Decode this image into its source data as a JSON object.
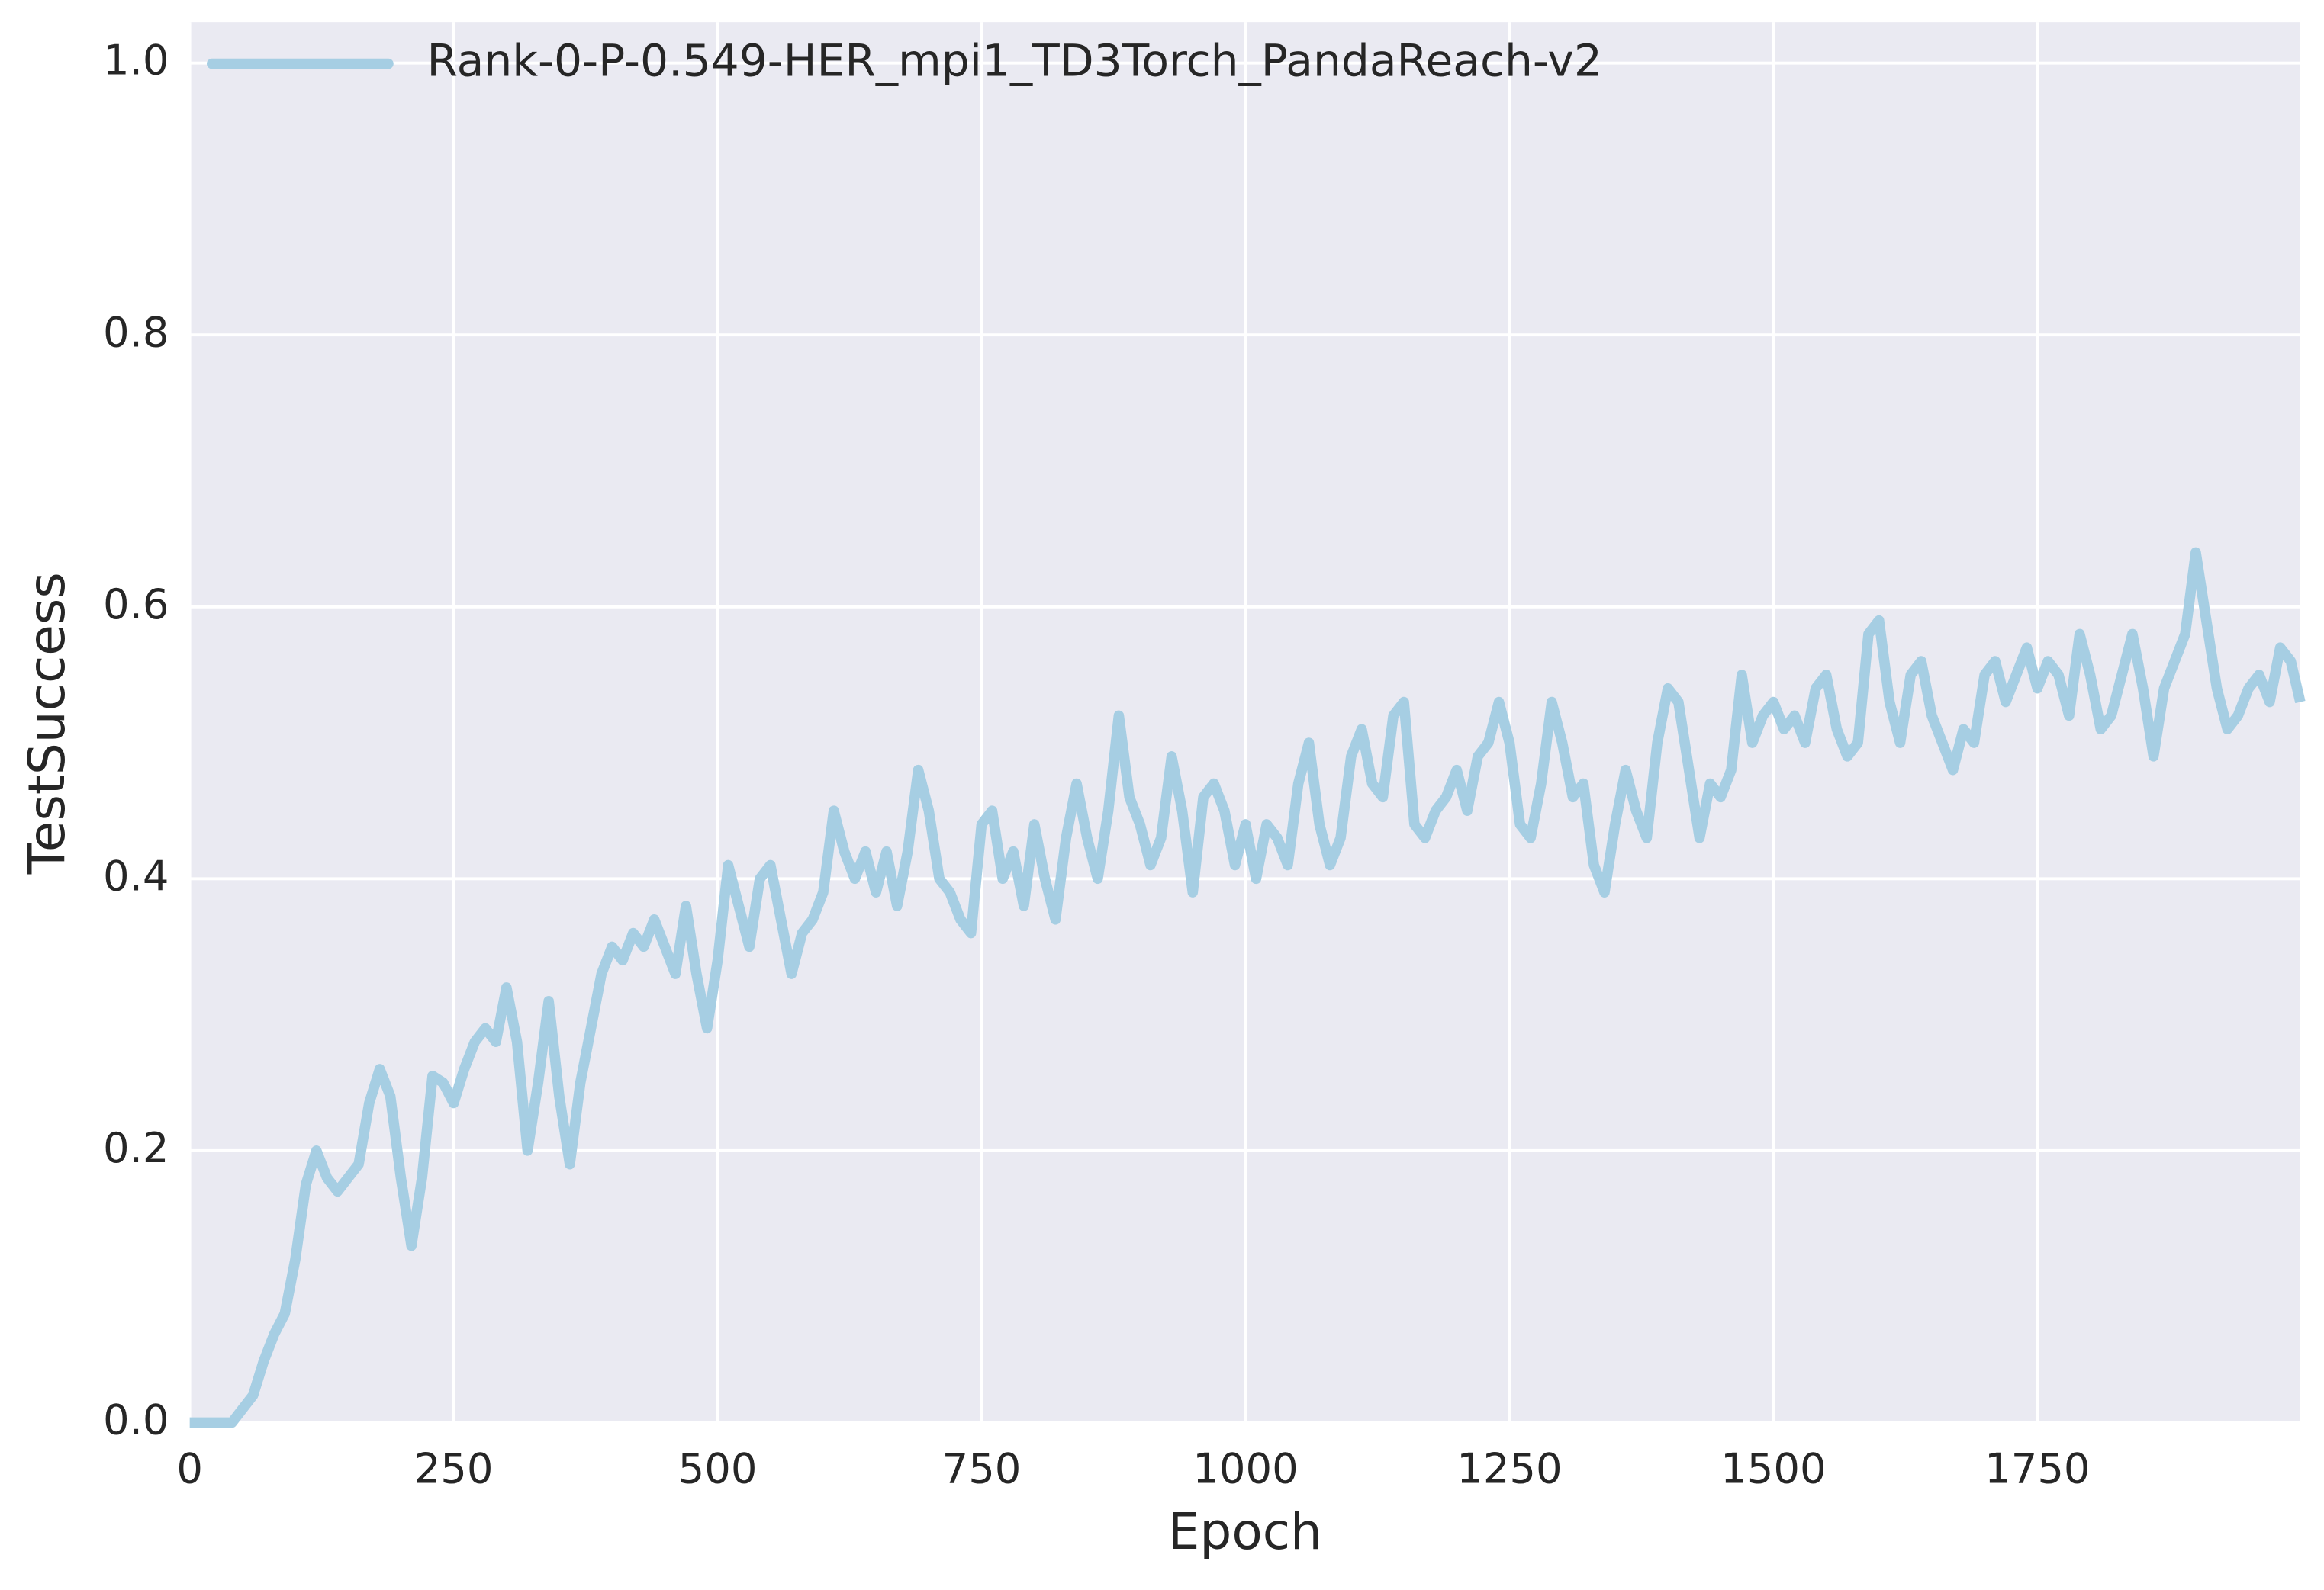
{
  "chart_data": {
    "type": "line",
    "xlabel": "Epoch",
    "ylabel": "TestSuccess",
    "xlim": [
      0,
      1999
    ],
    "ylim": [
      0,
      1.03
    ],
    "xticks": [
      0,
      250,
      500,
      750,
      1000,
      1250,
      1500,
      1750
    ],
    "yticks": [
      {
        "value": 0,
        "label": "0.0"
      },
      0.2,
      0.4,
      0.6,
      0.8,
      {
        "value": 1,
        "label": "1.0"
      }
    ],
    "grid": true,
    "legend": "upper left",
    "x": [
      0,
      10,
      20,
      30,
      40,
      50,
      60,
      70,
      80,
      90,
      100,
      110,
      120,
      130,
      140,
      150,
      160,
      170,
      180,
      190,
      200,
      210,
      220,
      230,
      240,
      250,
      260,
      270,
      280,
      290,
      300,
      310,
      320,
      330,
      340,
      350,
      360,
      370,
      380,
      390,
      400,
      410,
      420,
      430,
      440,
      450,
      460,
      470,
      480,
      490,
      500,
      510,
      520,
      530,
      540,
      550,
      560,
      570,
      580,
      590,
      600,
      610,
      620,
      630,
      640,
      650,
      660,
      670,
      680,
      690,
      700,
      710,
      720,
      730,
      740,
      750,
      760,
      770,
      780,
      790,
      800,
      810,
      820,
      830,
      840,
      850,
      860,
      870,
      880,
      890,
      900,
      910,
      920,
      930,
      940,
      950,
      960,
      970,
      980,
      990,
      1000,
      1010,
      1020,
      1030,
      1040,
      1050,
      1060,
      1070,
      1080,
      1090,
      1100,
      1110,
      1120,
      1130,
      1140,
      1150,
      1160,
      1170,
      1180,
      1190,
      1200,
      1210,
      1220,
      1230,
      1240,
      1250,
      1260,
      1270,
      1280,
      1290,
      1300,
      1310,
      1320,
      1330,
      1340,
      1350,
      1360,
      1370,
      1380,
      1390,
      1400,
      1410,
      1420,
      1430,
      1440,
      1450,
      1460,
      1470,
      1480,
      1490,
      1500,
      1510,
      1520,
      1530,
      1540,
      1550,
      1560,
      1570,
      1580,
      1590,
      1600,
      1610,
      1620,
      1630,
      1640,
      1650,
      1660,
      1670,
      1680,
      1690,
      1700,
      1710,
      1720,
      1730,
      1740,
      1750,
      1760,
      1770,
      1780,
      1790,
      1800,
      1810,
      1820,
      1830,
      1840,
      1850,
      1860,
      1870,
      1880,
      1890,
      1900,
      1910,
      1920,
      1930,
      1940,
      1950,
      1960,
      1970,
      1980,
      1990,
      1999
    ],
    "series": [
      {
        "name": "Rank-0-P-0.549-HER_mpi1_TD3Torch_PandaReach-v2",
        "color": "#a6cee3",
        "values": [
          0,
          0,
          0,
          0,
          0,
          0.01,
          0.02,
          0.045,
          0.065,
          0.08,
          0.12,
          0.175,
          0.2,
          0.18,
          0.17,
          0.18,
          0.19,
          0.235,
          0.26,
          0.24,
          0.18,
          0.13,
          0.18,
          0.255,
          0.25,
          0.235,
          0.26,
          0.28,
          0.29,
          0.28,
          0.32,
          0.28,
          0.2,
          0.25,
          0.31,
          0.24,
          0.19,
          0.25,
          0.29,
          0.33,
          0.35,
          0.34,
          0.36,
          0.35,
          0.37,
          0.35,
          0.33,
          0.38,
          0.33,
          0.29,
          0.34,
          0.41,
          0.38,
          0.35,
          0.4,
          0.41,
          0.37,
          0.33,
          0.36,
          0.37,
          0.39,
          0.45,
          0.42,
          0.4,
          0.42,
          0.39,
          0.42,
          0.38,
          0.42,
          0.48,
          0.45,
          0.4,
          0.39,
          0.37,
          0.36,
          0.44,
          0.45,
          0.4,
          0.42,
          0.38,
          0.44,
          0.4,
          0.37,
          0.43,
          0.47,
          0.43,
          0.4,
          0.45,
          0.52,
          0.46,
          0.44,
          0.41,
          0.43,
          0.49,
          0.45,
          0.39,
          0.46,
          0.47,
          0.45,
          0.41,
          0.44,
          0.4,
          0.44,
          0.43,
          0.41,
          0.47,
          0.5,
          0.44,
          0.41,
          0.43,
          0.49,
          0.51,
          0.47,
          0.46,
          0.52,
          0.53,
          0.44,
          0.43,
          0.45,
          0.46,
          0.48,
          0.45,
          0.49,
          0.5,
          0.53,
          0.5,
          0.44,
          0.43,
          0.47,
          0.53,
          0.5,
          0.46,
          0.47,
          0.41,
          0.39,
          0.44,
          0.48,
          0.45,
          0.43,
          0.5,
          0.54,
          0.53,
          0.48,
          0.43,
          0.47,
          0.46,
          0.48,
          0.55,
          0.5,
          0.52,
          0.53,
          0.51,
          0.52,
          0.5,
          0.54,
          0.55,
          0.51,
          0.49,
          0.5,
          0.58,
          0.59,
          0.53,
          0.5,
          0.55,
          0.56,
          0.52,
          0.5,
          0.48,
          0.51,
          0.5,
          0.55,
          0.56,
          0.53,
          0.55,
          0.57,
          0.54,
          0.56,
          0.55,
          0.52,
          0.58,
          0.55,
          0.51,
          0.52,
          0.55,
          0.58,
          0.54,
          0.49,
          0.54,
          0.56,
          0.58,
          0.64,
          0.59,
          0.54,
          0.51,
          0.52,
          0.54,
          0.55,
          0.53,
          0.57,
          0.56,
          0.53
        ]
      }
    ]
  }
}
